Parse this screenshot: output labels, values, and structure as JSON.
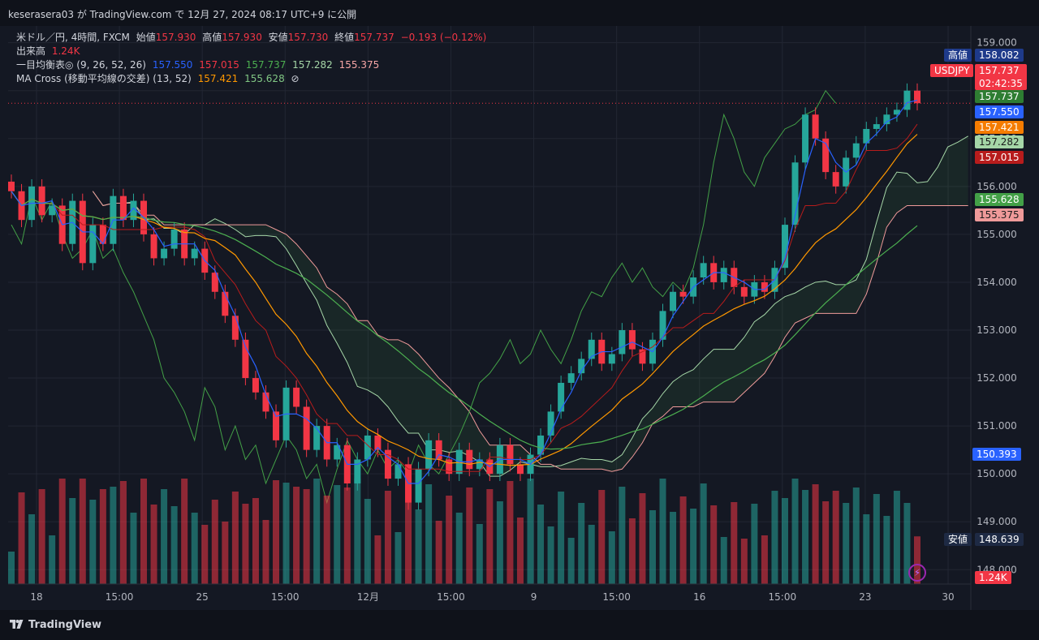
{
  "header": {
    "publish_text": "keserasera03 が TradingView.com で 12月 27, 2024 08:17 UTC+9 に公開"
  },
  "legend": {
    "symbol": "米ドル／円, 4時間, FXCM",
    "open_label": "始値",
    "open": "157.930",
    "high_label": "高値",
    "high": "157.930",
    "low_label": "安値",
    "low": "157.730",
    "close_label": "終値",
    "close": "157.737",
    "change": "−0.193 (−0.12%)",
    "volume_label": "出来高",
    "volume": "1.24K",
    "ichimoku_label": "一目均衡表◎ (9, 26, 52, 26)",
    "ichimoku_values": [
      "157.550",
      "157.015",
      "157.737",
      "157.282",
      "155.375"
    ],
    "ma_label": "MA Cross (移動平均線の交差) (13, 52)",
    "ma_values": [
      "157.421",
      "155.628"
    ],
    "ma_icon": "hidden-eye-icon"
  },
  "price_tags": {
    "high_label": "高値",
    "high_value": "158.082",
    "symbol": "USDJPY",
    "last": "157.737",
    "countdown": "02:42:35",
    "chikou": "157.737",
    "tenkan": "157.550",
    "ma_fast": "157.421",
    "span_a": "157.282",
    "kijun": "157.015",
    "ma_slow": "155.628",
    "span_b": "155.375",
    "blue_marker": "150.393",
    "low_label": "安値",
    "low_value": "148.639",
    "volume": "1.24K"
  },
  "footer": {
    "brand": "TradingView"
  },
  "colors": {
    "bg": "#141823",
    "up": "#26a69a",
    "down": "#f23645",
    "tenkan": "#2962ff",
    "kijun": "#b71c1c",
    "chikou": "#43a047",
    "span_a": "#a5d6a7",
    "span_b": "#ef9a9a",
    "ma_fast": "#ff9800",
    "ma_slow": "#4caf50"
  },
  "chart_data": {
    "type": "candlestick",
    "symbol": "USDJPY",
    "timeframe": "4時間",
    "y_axis": {
      "ticks": [
        "159.000",
        "158.000",
        "157.000",
        "156.000",
        "155.000",
        "154.000",
        "153.000",
        "152.000",
        "151.000",
        "150.000",
        "149.000",
        "148.000"
      ],
      "range": [
        147.7,
        159.35
      ]
    },
    "x_axis": {
      "ticks": [
        "18",
        "15:00",
        "25",
        "15:00",
        "12月",
        "15:00",
        "9",
        "15:00",
        "16",
        "15:00",
        "23",
        "30"
      ]
    },
    "closes_approx": [
      155.9,
      155.3,
      156.0,
      155.4,
      155.6,
      154.8,
      155.7,
      154.4,
      155.2,
      154.8,
      155.8,
      155.3,
      155.7,
      155.0,
      154.5,
      154.7,
      155.1,
      154.5,
      154.7,
      154.2,
      153.8,
      153.3,
      152.8,
      152.0,
      151.7,
      151.3,
      150.7,
      151.8,
      151.4,
      150.5,
      151.0,
      150.3,
      150.6,
      149.8,
      150.3,
      150.8,
      150.5,
      149.9,
      150.2,
      149.4,
      150.1,
      150.7,
      150.3,
      150.0,
      150.5,
      150.1,
      150.3,
      150.0,
      150.6,
      150.2,
      150.0,
      150.4,
      150.8,
      151.3,
      151.9,
      152.1,
      152.4,
      152.8,
      152.3,
      152.5,
      153.0,
      152.6,
      152.3,
      152.8,
      153.4,
      153.8,
      153.7,
      154.1,
      154.4,
      154.0,
      154.3,
      153.9,
      153.7,
      154.0,
      153.8,
      154.3,
      155.2,
      156.5,
      157.5,
      157.0,
      156.3,
      156.0,
      156.6,
      156.9,
      157.2,
      157.3,
      157.5,
      157.6,
      158.0,
      157.737
    ],
    "series": [
      {
        "name": "転換線 (Tenkan)",
        "last": 157.55
      },
      {
        "name": "基準線 (Kijun)",
        "last": 157.015
      },
      {
        "name": "遅行スパン (Chikou)",
        "last": 157.737
      },
      {
        "name": "先行スパンA",
        "last": 157.282
      },
      {
        "name": "先行スパンB",
        "last": 155.375
      },
      {
        "name": "MA 13",
        "last": 157.421
      },
      {
        "name": "MA 52",
        "last": 155.628
      }
    ],
    "volume_last": "1.24K"
  }
}
